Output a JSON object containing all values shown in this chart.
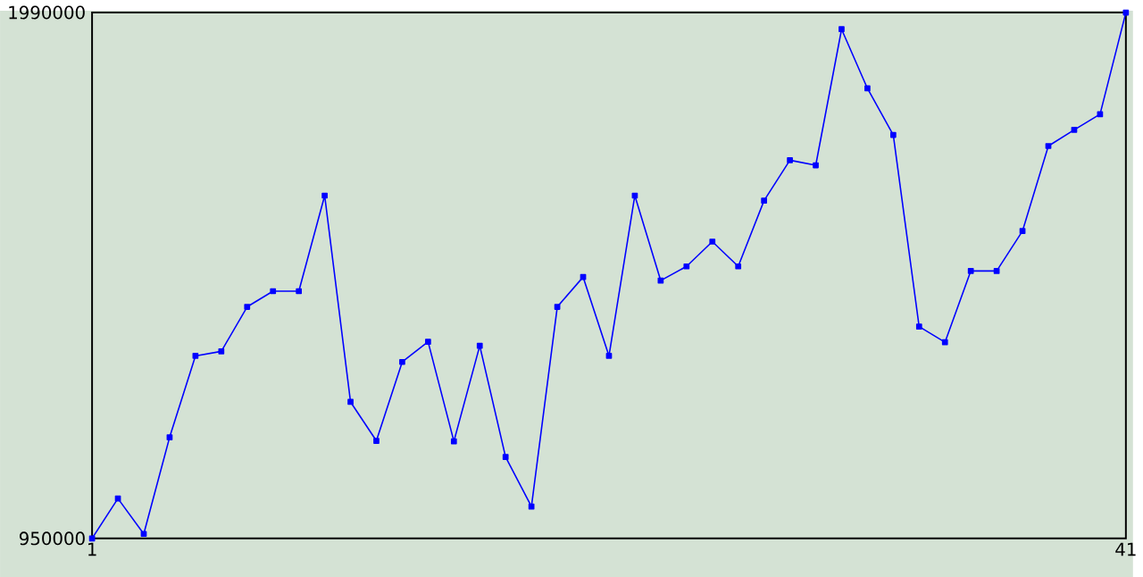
{
  "chart_data": {
    "type": "line",
    "x": [
      1,
      2,
      3,
      4,
      5,
      6,
      7,
      8,
      9,
      10,
      11,
      12,
      13,
      14,
      15,
      16,
      17,
      18,
      19,
      20,
      21,
      22,
      23,
      24,
      25,
      26,
      27,
      28,
      29,
      30,
      31,
      32,
      33,
      34,
      35,
      36,
      37,
      38,
      39,
      40,
      41
    ],
    "series": [
      {
        "color": "#0000ff",
        "values": [
          950000,
          1029000,
          959000,
          1150000,
          1311000,
          1320000,
          1408000,
          1439000,
          1439000,
          1628000,
          1220000,
          1143000,
          1299000,
          1339000,
          1142000,
          1331000,
          1111000,
          1013000,
          1408000,
          1467000,
          1311000,
          1628000,
          1460000,
          1488000,
          1537000,
          1488000,
          1618000,
          1698000,
          1688000,
          1957000,
          1840000,
          1748000,
          1369000,
          1338000,
          1479000,
          1479000,
          1558000,
          1726000,
          1758000,
          1789000,
          1990000
        ]
      }
    ],
    "xlim": [
      1,
      41
    ],
    "ylim": [
      950000,
      1990000
    ],
    "xticks": [
      1,
      41
    ],
    "yticks": [
      950000,
      1990000
    ],
    "marker": "square",
    "line_style": "solid"
  }
}
